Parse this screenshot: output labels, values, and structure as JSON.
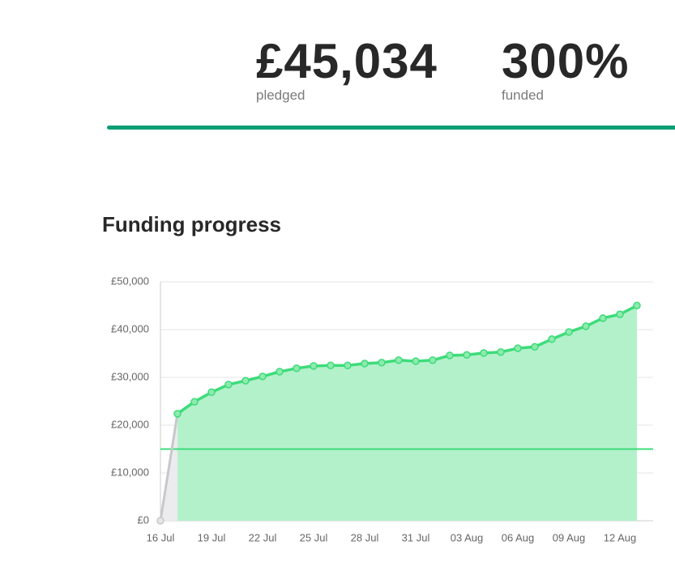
{
  "stats": [
    {
      "value": "£45,034",
      "label": "pledged"
    },
    {
      "value": "300%",
      "label": "funded"
    }
  ],
  "chart_data": {
    "type": "line",
    "title": "Funding progress",
    "categories": [
      "16 Jul",
      null,
      null,
      "19 Jul",
      null,
      null,
      "22 Jul",
      null,
      null,
      "25 Jul",
      null,
      null,
      "28 Jul",
      null,
      null,
      "31 Jul",
      null,
      null,
      "03 Aug",
      null,
      null,
      "06 Aug",
      null,
      null,
      "09 Aug",
      null,
      null,
      "12 Aug",
      null
    ],
    "series": [
      {
        "color": "#3ddc7a",
        "values": [
          0,
          22400,
          24900,
          26900,
          28500,
          29300,
          30200,
          31200,
          31900,
          32400,
          32500,
          32500,
          32900,
          33100,
          33600,
          33400,
          33600,
          34600,
          34700,
          35100,
          35300,
          36100,
          36400,
          38000,
          39500,
          40700,
          42400,
          43200,
          45034
        ]
      }
    ],
    "first_segment_color": "#c8c8cc",
    "area_color": "#b3f1cb",
    "goal": 15000,
    "goal_color": "#3ddc7a",
    "ylim": [
      0,
      50000
    ],
    "yticks": [
      {
        "value": 0,
        "label": "£0"
      },
      {
        "value": 10000,
        "label": "£10,000"
      },
      {
        "value": 20000,
        "label": "£20,000"
      },
      {
        "value": 30000,
        "label": "£30,000"
      },
      {
        "value": 40000,
        "label": "£40,000"
      },
      {
        "value": 50000,
        "label": "£50,000"
      }
    ],
    "grid": true
  }
}
